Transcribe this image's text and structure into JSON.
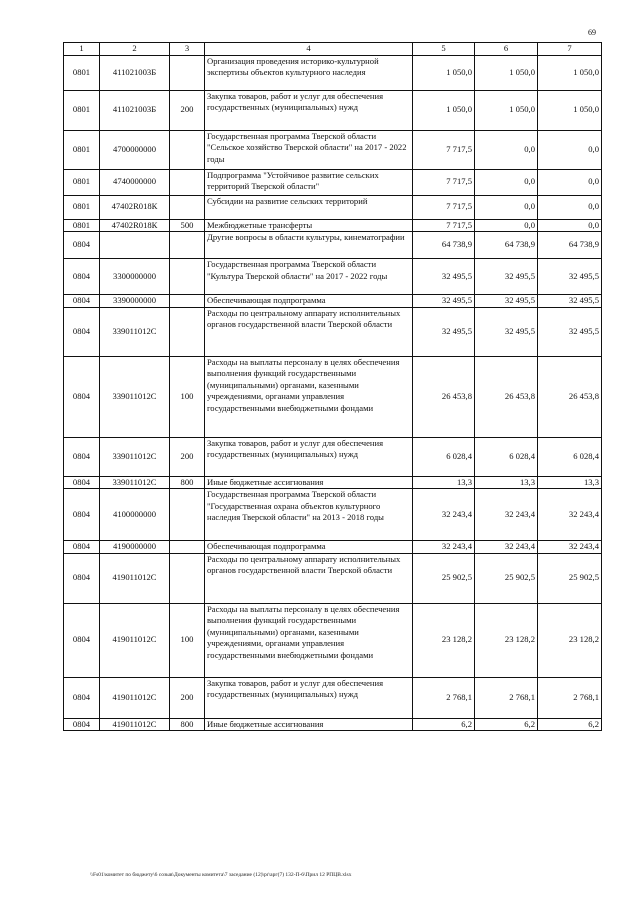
{
  "page_number": "69",
  "table": {
    "header": [
      "1",
      "2",
      "3",
      "4",
      "5",
      "6",
      "7"
    ],
    "rows": [
      [
        "0801",
        "411021003Б",
        "",
        "Организация проведения историко-культурной экспертизы объектов культурного наследия",
        "1 050,0",
        "1 050,0",
        "1 050,0"
      ],
      [
        "0801",
        "411021003Б",
        "200",
        "Закупка товаров, работ и услуг для обеспечения государственных (муниципальных) нужд",
        "1 050,0",
        "1 050,0",
        "1 050,0"
      ],
      [
        "0801",
        "4700000000",
        "",
        "Государственная программа Тверской области \"Сельское хозяйство Тверской области\" на 2017 - 2022 годы",
        "7 717,5",
        "0,0",
        "0,0"
      ],
      [
        "0801",
        "4740000000",
        "",
        "Подпрограмма \"Устойчивое развитие сельских территорий Тверской области\"",
        "7 717,5",
        "0,0",
        "0,0"
      ],
      [
        "0801",
        "47402R018К",
        "",
        "Субсидии на развитие сельских территорий",
        "7 717,5",
        "0,0",
        "0,0"
      ],
      [
        "0801",
        "47402R018К",
        "500",
        "Межбюджетные трансферты",
        "7 717,5",
        "0,0",
        "0,0"
      ],
      [
        "0804",
        "",
        "",
        "Другие вопросы в области культуры, кинематографии",
        "64 738,9",
        "64 738,9",
        "64 738,9"
      ],
      [
        "0804",
        "3300000000",
        "",
        "Государственная программа Тверской области \"Культура Тверской области\" на 2017 - 2022 годы",
        "32 495,5",
        "32 495,5",
        "32 495,5"
      ],
      [
        "0804",
        "3390000000",
        "",
        "Обеспечивающая подпрограмма",
        "32 495,5",
        "32 495,5",
        "32 495,5"
      ],
      [
        "0804",
        "339011012С",
        "",
        "Расходы по центральному аппарату исполнительных органов государственной власти Тверской области",
        "32 495,5",
        "32 495,5",
        "32 495,5"
      ],
      [
        "0804",
        "339011012С",
        "100",
        "Расходы на выплаты персоналу в целях обеспечения выполнения функций государственными (муниципальными) органами, казенными учреждениями, органами управления государственными внебюджетными фондами",
        "26 453,8",
        "26 453,8",
        "26 453,8"
      ],
      [
        "0804",
        "339011012С",
        "200",
        "Закупка товаров, работ и услуг для обеспечения государственных (муниципальных) нужд",
        "6 028,4",
        "6 028,4",
        "6 028,4"
      ],
      [
        "0804",
        "339011012С",
        "800",
        "Иные бюджетные ассигнования",
        "13,3",
        "13,3",
        "13,3"
      ],
      [
        "0804",
        "4100000000",
        "",
        "Государственная программа Тверской области \"Государственная охрана объектов культурного наследия Тверской области\" на 2013 - 2018 годы",
        "32 243,4",
        "32 243,4",
        "32 243,4"
      ],
      [
        "0804",
        "4190000000",
        "",
        "Обеспечивающая подпрограмма",
        "32 243,4",
        "32 243,4",
        "32 243,4"
      ],
      [
        "0804",
        "419011012С",
        "",
        "Расходы по центральному аппарату исполнительных органов государственной власти Тверской области",
        "25 902,5",
        "25 902,5",
        "25 902,5"
      ],
      [
        "0804",
        "419011012С",
        "100",
        "Расходы на выплаты персоналу в целях обеспечения выполнения функций государственными (муниципальными) органами, казенными учреждениями, органами управления государственными внебюджетными фондами",
        "23 128,2",
        "23 128,2",
        "23 128,2"
      ],
      [
        "0804",
        "419011012С",
        "200",
        "Закупка товаров, работ и услуг для обеспечения государственных (муниципальных) нужд",
        "2 768,1",
        "2 768,1",
        "2 768,1"
      ],
      [
        "0804",
        "419011012С",
        "800",
        "Иные бюджетные ассигнования",
        "6,2",
        "6,2",
        "6,2"
      ]
    ]
  },
  "footer": "\\\\Fs01\\комитет по бюджету\\6 созыв\\Документы комитета\\7 заседание (12)\\pr\\арг(7) 132-П-6\\Прил 12 РПЦВ.xlsx"
}
